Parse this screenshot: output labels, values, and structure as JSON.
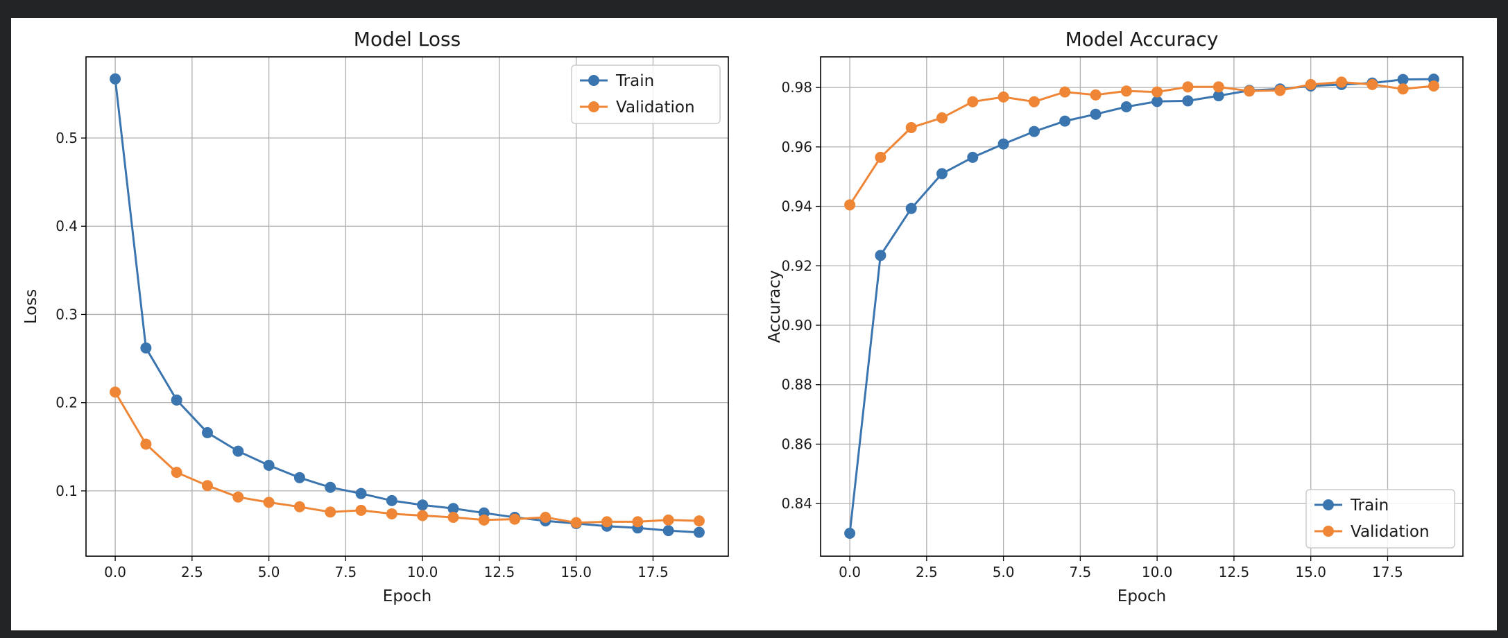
{
  "chart_data": [
    {
      "type": "line",
      "title": "Model Loss",
      "xlabel": "Epoch",
      "ylabel": "Loss",
      "xlim": [
        -0.95,
        19.95
      ],
      "ylim": [
        0.026,
        0.592
      ],
      "xticks": [
        0,
        2.5,
        5,
        7.5,
        10,
        12.5,
        15,
        17.5
      ],
      "xtick_labels": [
        "0.0",
        "2.5",
        "5.0",
        "7.5",
        "10.0",
        "12.5",
        "15.0",
        "17.5"
      ],
      "yticks": [
        0.1,
        0.2,
        0.3,
        0.4,
        0.5
      ],
      "ytick_labels": [
        "0.1",
        "0.2",
        "0.3",
        "0.4",
        "0.5"
      ],
      "grid": true,
      "legend_position": "top-right",
      "x": [
        0,
        1,
        2,
        3,
        4,
        5,
        6,
        7,
        8,
        9,
        10,
        11,
        12,
        13,
        14,
        15,
        16,
        17,
        18,
        19
      ],
      "series": [
        {
          "name": "Train",
          "color": "#3b75af",
          "values": [
            0.567,
            0.262,
            0.203,
            0.166,
            0.145,
            0.129,
            0.115,
            0.104,
            0.097,
            0.089,
            0.084,
            0.08,
            0.075,
            0.07,
            0.066,
            0.063,
            0.06,
            0.058,
            0.055,
            0.053
          ]
        },
        {
          "name": "Validation",
          "color": "#ef8636",
          "values": [
            0.212,
            0.153,
            0.121,
            0.106,
            0.093,
            0.087,
            0.082,
            0.076,
            0.078,
            0.074,
            0.072,
            0.07,
            0.067,
            0.068,
            0.07,
            0.064,
            0.065,
            0.065,
            0.067,
            0.066
          ]
        }
      ]
    },
    {
      "type": "line",
      "title": "Model Accuracy",
      "xlabel": "Epoch",
      "ylabel": "Accuracy",
      "xlim": [
        -0.95,
        19.95
      ],
      "ylim": [
        0.8223,
        0.9903
      ],
      "xticks": [
        0,
        2.5,
        5,
        7.5,
        10,
        12.5,
        15,
        17.5
      ],
      "xtick_labels": [
        "0.0",
        "2.5",
        "5.0",
        "7.5",
        "10.0",
        "12.5",
        "15.0",
        "17.5"
      ],
      "yticks": [
        0.84,
        0.86,
        0.88,
        0.9,
        0.92,
        0.94,
        0.96,
        0.98
      ],
      "ytick_labels": [
        "0.84",
        "0.86",
        "0.88",
        "0.90",
        "0.92",
        "0.94",
        "0.96",
        "0.98"
      ],
      "grid": true,
      "legend_position": "bottom-right",
      "x": [
        0,
        1,
        2,
        3,
        4,
        5,
        6,
        7,
        8,
        9,
        10,
        11,
        12,
        13,
        14,
        15,
        16,
        17,
        18,
        19
      ],
      "series": [
        {
          "name": "Train",
          "color": "#3b75af",
          "values": [
            0.83,
            0.9235,
            0.9393,
            0.951,
            0.9565,
            0.961,
            0.9652,
            0.9687,
            0.971,
            0.9735,
            0.9753,
            0.9755,
            0.9772,
            0.979,
            0.9795,
            0.9805,
            0.981,
            0.9815,
            0.9827,
            0.9828
          ]
        },
        {
          "name": "Validation",
          "color": "#ef8636",
          "values": [
            0.9405,
            0.9565,
            0.9665,
            0.9698,
            0.9752,
            0.9768,
            0.9752,
            0.9785,
            0.9775,
            0.9788,
            0.9785,
            0.9802,
            0.9802,
            0.9788,
            0.979,
            0.981,
            0.9818,
            0.981,
            0.9795,
            0.9805
          ]
        }
      ]
    }
  ]
}
